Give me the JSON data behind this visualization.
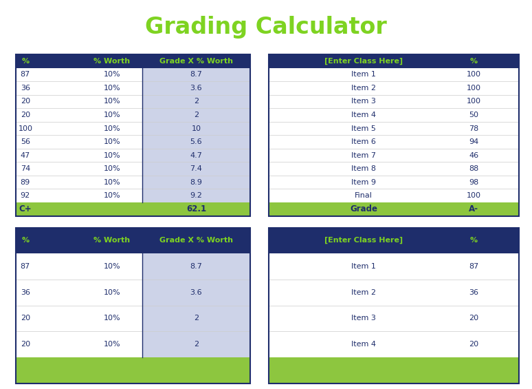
{
  "title": "Grading Calculator",
  "title_bg": "#1e2d6b",
  "title_color": "#7ed321",
  "header_bg": "#1e2d6b",
  "header_color": "#7ed321",
  "body_bg": "#ffffff",
  "body_color": "#1e2d6b",
  "highlight_bg": "#cdd3e8",
  "footer_bg": "#8dc63f",
  "footer_color": "#1e2d6b",
  "bg_color": "#ffffff",
  "table1_headers": [
    "%",
    "% Worth",
    "Grade X % Worth"
  ],
  "table1_data": [
    [
      "87",
      "10%",
      "8.7"
    ],
    [
      "36",
      "10%",
      "3.6"
    ],
    [
      "20",
      "10%",
      "2"
    ],
    [
      "20",
      "10%",
      "2"
    ],
    [
      "100",
      "10%",
      "10"
    ],
    [
      "56",
      "10%",
      "5.6"
    ],
    [
      "47",
      "10%",
      "4.7"
    ],
    [
      "74",
      "10%",
      "7.4"
    ],
    [
      "89",
      "10%",
      "8.9"
    ],
    [
      "92",
      "10%",
      "9.2"
    ]
  ],
  "table1_footer": [
    "C+",
    "",
    "62.1"
  ],
  "table2_headers": [
    "[Enter Class Here]",
    "%"
  ],
  "table2_data": [
    [
      "Item 1",
      "100"
    ],
    [
      "Item 2",
      "100"
    ],
    [
      "Item 3",
      "100"
    ],
    [
      "Item 4",
      "50"
    ],
    [
      "Item 5",
      "78"
    ],
    [
      "Item 6",
      "94"
    ],
    [
      "Item 7",
      "46"
    ],
    [
      "Item 8",
      "88"
    ],
    [
      "Item 9",
      "98"
    ],
    [
      "Final",
      "100"
    ]
  ],
  "table2_footer": [
    "Grade",
    "A-"
  ],
  "table3_headers": [
    "%",
    "% Worth",
    "Grade X % Worth"
  ],
  "table3_data": [
    [
      "87",
      "10%",
      "8.7"
    ],
    [
      "36",
      "10%",
      "3.6"
    ],
    [
      "20",
      "10%",
      "2"
    ],
    [
      "20",
      "10%",
      "2"
    ]
  ],
  "table3_footer": [
    "",
    "",
    ""
  ],
  "table4_headers": [
    "[Enter Class Here]",
    "%"
  ],
  "table4_data": [
    [
      "Item 1",
      "87"
    ],
    [
      "Item 2",
      "36"
    ],
    [
      "Item 3",
      "20"
    ],
    [
      "Item 4",
      "20"
    ]
  ],
  "table4_footer": [
    "",
    ""
  ]
}
